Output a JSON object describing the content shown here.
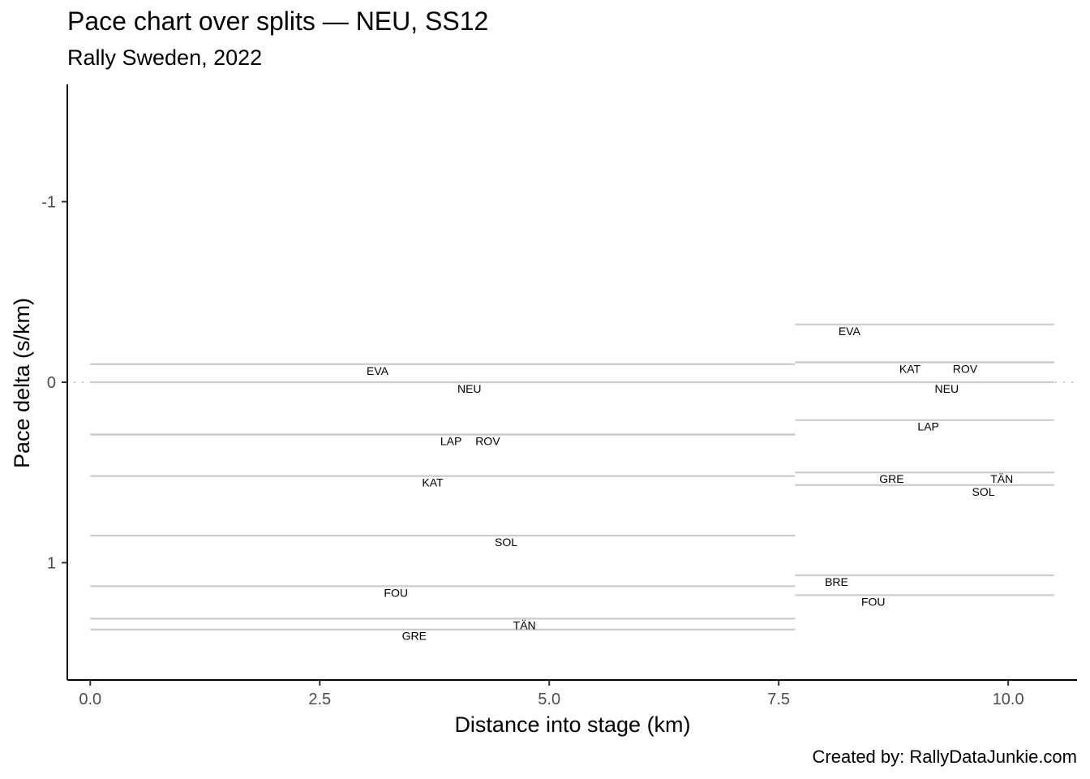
{
  "chart_data": {
    "type": "line",
    "title": "Pace chart over splits — NEU, SS12",
    "subtitle": "Rally Sweden, 2022",
    "caption": "Created by: RallyDataJunkie.com",
    "xlabel": "Distance into stage (km)",
    "ylabel": "Pace delta (s/km)",
    "xlim": [
      -0.25,
      10.75
    ],
    "ylim": [
      1.65,
      -1.65
    ],
    "y_reversed": true,
    "x_ticks": [
      "0.0",
      "2.5",
      "5.0",
      "7.5",
      "10.0"
    ],
    "y_ticks": [
      "-1",
      "0",
      "1"
    ],
    "reference_line": {
      "y": 0,
      "style": "dotted"
    },
    "segments": [
      {
        "name": "split-1",
        "x_start": 0.0,
        "x_end": 7.68
      },
      {
        "name": "split-2",
        "x_start": 7.68,
        "x_end": 10.5
      }
    ],
    "series": [
      {
        "name": "EVA",
        "values": [
          -0.1,
          -0.32
        ],
        "label_x": [
          3.13,
          8.27
        ]
      },
      {
        "name": "NEU",
        "values": [
          0.0,
          0.0
        ],
        "label_x": [
          4.13,
          9.33
        ]
      },
      {
        "name": "LAP",
        "values": [
          0.29,
          0.21
        ],
        "label_x": [
          3.93,
          9.13
        ]
      },
      {
        "name": "ROV",
        "values": [
          0.29,
          -0.11
        ],
        "label_x": [
          4.33,
          9.53
        ]
      },
      {
        "name": "KAT",
        "values": [
          0.52,
          -0.11
        ],
        "label_x": [
          3.73,
          8.93
        ]
      },
      {
        "name": "SOL",
        "values": [
          0.85,
          0.57
        ],
        "label_x": [
          4.53,
          9.73
        ]
      },
      {
        "name": "FOU",
        "values": [
          1.13,
          1.18
        ],
        "label_x": [
          3.33,
          8.53
        ]
      },
      {
        "name": "TÄN",
        "values": [
          1.31,
          0.5
        ],
        "label_x": [
          4.73,
          9.93
        ]
      },
      {
        "name": "GRE",
        "values": [
          1.37,
          0.5
        ],
        "label_x": [
          3.53,
          8.73
        ]
      },
      {
        "name": "BRE",
        "values": [
          null,
          1.07
        ],
        "label_x": [
          null,
          8.13
        ]
      }
    ],
    "grid": false,
    "line_color": "#cccccc"
  }
}
